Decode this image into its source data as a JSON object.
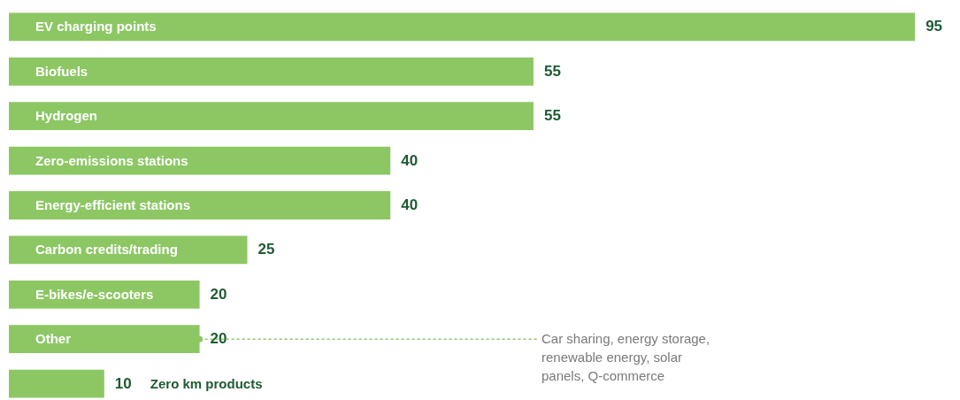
{
  "chart_data": {
    "type": "bar",
    "orientation": "horizontal",
    "data_labels": true,
    "categories": [
      "EV charging points",
      "Biofuels",
      "Hydrogen",
      "Zero-emissions stations",
      "Energy-efficient stations",
      "Carbon credits/trading",
      "E-bikes/e-scooters",
      "Other",
      "Zero km products"
    ],
    "values": [
      95,
      55,
      55,
      40,
      40,
      25,
      20,
      20,
      10
    ],
    "color": "#8cc764",
    "annotations": [
      {
        "text": "Car sharing, energy storage, renewable energy, solar panels, Q-commerce",
        "x": 20,
        "y": "Other"
      }
    ]
  }
}
